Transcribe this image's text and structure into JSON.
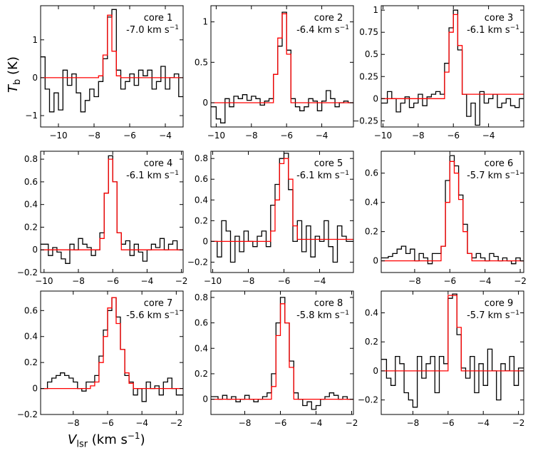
{
  "figure": {
    "ylabel_main": "T",
    "ylabel_sub": "b",
    "ylabel_unit": " (K)",
    "xlabel_main": "V",
    "xlabel_sub": "lsr",
    "xlabel_unit": " (km s",
    "xlabel_exp": "−1",
    "xlabel_close": ")"
  },
  "chart_data": [
    {
      "type": "line",
      "title": "core 1",
      "velocity": "-7.0 km s",
      "vel_exp": "−1",
      "xlim": [
        -11.0,
        -3.0
      ],
      "ylim": [
        -1.3,
        1.9
      ],
      "xticks": [
        -10,
        -8,
        -6,
        -4
      ],
      "yticks": [
        -1,
        0,
        1
      ],
      "series": [
        {
          "name": "observed",
          "step": true,
          "color": "#000000",
          "x": [
            -11.0,
            -10.75,
            -10.5,
            -10.25,
            -10.0,
            -9.75,
            -9.5,
            -9.25,
            -9.0,
            -8.75,
            -8.5,
            -8.25,
            -8.0,
            -7.75,
            -7.5,
            -7.25,
            -7.0,
            -6.75,
            -6.5,
            -6.25,
            -6.0,
            -5.75,
            -5.5,
            -5.25,
            -5.0,
            -4.75,
            -4.5,
            -4.25,
            -4.0,
            -3.75,
            -3.5,
            -3.25
          ],
          "y": [
            0.55,
            -0.3,
            -0.9,
            -0.4,
            -0.85,
            0.2,
            -0.2,
            0.1,
            -0.4,
            -0.9,
            -0.6,
            -0.3,
            -0.5,
            -0.1,
            0.5,
            1.6,
            1.8,
            0.2,
            -0.3,
            -0.1,
            0.1,
            -0.2,
            0.2,
            0.05,
            0.2,
            -0.3,
            -0.1,
            0.3,
            -0.3,
            0.0,
            0.1,
            -0.5
          ]
        },
        {
          "name": "fit",
          "step": true,
          "color": "#ff0000",
          "x": [
            -11.0,
            -7.75,
            -7.5,
            -7.25,
            -7.0,
            -6.75,
            -6.5
          ],
          "y": [
            0.0,
            0.05,
            0.6,
            1.65,
            0.7,
            0.05,
            0.0
          ]
        }
      ]
    },
    {
      "type": "line",
      "title": "core 2",
      "velocity": "-6.4 km s",
      "vel_exp": "−1",
      "xlim": [
        -10.3,
        -2.2
      ],
      "ylim": [
        -0.3,
        1.2
      ],
      "xticks": [
        -10,
        -8,
        -6,
        -4
      ],
      "yticks": [
        0.0,
        0.5,
        1.0
      ],
      "series": [
        {
          "name": "observed",
          "step": true,
          "color": "#000000",
          "x": [
            -10.3,
            -10.0,
            -9.75,
            -9.5,
            -9.25,
            -9.0,
            -8.75,
            -8.5,
            -8.25,
            -8.0,
            -7.75,
            -7.5,
            -7.25,
            -7.0,
            -6.75,
            -6.5,
            -6.25,
            -6.0,
            -5.75,
            -5.5,
            -5.25,
            -5.0,
            -4.75,
            -4.5,
            -4.25,
            -4.0,
            -3.75,
            -3.5,
            -3.25,
            -3.0,
            -2.75,
            -2.5
          ],
          "y": [
            -0.05,
            -0.2,
            -0.25,
            0.05,
            -0.05,
            0.08,
            0.05,
            0.1,
            0.03,
            0.08,
            0.05,
            -0.03,
            0.02,
            0.05,
            0.35,
            0.7,
            1.12,
            0.65,
            0.05,
            -0.05,
            -0.1,
            -0.05,
            0.05,
            0.02,
            -0.1,
            0.02,
            0.15,
            0.05,
            -0.05,
            0.0,
            0.02,
            0.0
          ]
        },
        {
          "name": "fit",
          "step": true,
          "color": "#ff0000",
          "x": [
            -10.3,
            -6.75,
            -6.5,
            -6.25,
            -6.0,
            -5.75
          ],
          "y": [
            0.0,
            0.35,
            0.8,
            1.1,
            0.6,
            0.0
          ]
        }
      ]
    },
    {
      "type": "line",
      "title": "core 3",
      "velocity": "-6.1 km s",
      "vel_exp": "−1",
      "xlim": [
        -10.1,
        -2.0
      ],
      "ylim": [
        -0.32,
        1.05
      ],
      "xticks": [
        -10,
        -8,
        -6,
        -4
      ],
      "yticks": [
        -0.25,
        0.0,
        0.25,
        0.5,
        0.75,
        1.0
      ],
      "series": [
        {
          "name": "observed",
          "step": true,
          "color": "#000000",
          "x": [
            -10.1,
            -9.75,
            -9.5,
            -9.25,
            -9.0,
            -8.75,
            -8.5,
            -8.25,
            -8.0,
            -7.75,
            -7.5,
            -7.25,
            -7.0,
            -6.75,
            -6.5,
            -6.25,
            -6.0,
            -5.75,
            -5.5,
            -5.25,
            -5.0,
            -4.75,
            -4.5,
            -4.25,
            -4.0,
            -3.75,
            -3.5,
            -3.25,
            -3.0,
            -2.75,
            -2.5,
            -2.25
          ],
          "y": [
            -0.05,
            0.08,
            0.0,
            -0.15,
            -0.05,
            0.02,
            -0.1,
            -0.05,
            0.05,
            -0.08,
            0.02,
            0.05,
            0.08,
            0.05,
            0.4,
            0.8,
            1.0,
            0.55,
            0.05,
            -0.2,
            -0.05,
            -0.3,
            0.08,
            -0.05,
            0.0,
            0.05,
            -0.1,
            -0.05,
            0.0,
            -0.08,
            -0.1,
            0.0
          ]
        },
        {
          "name": "fit",
          "step": true,
          "color": "#ff0000",
          "x": [
            -10.1,
            -6.5,
            -6.25,
            -6.0,
            -5.75,
            -5.5
          ],
          "y": [
            0.0,
            0.3,
            0.75,
            0.95,
            0.6,
            0.05
          ]
        }
      ]
    },
    {
      "type": "line",
      "title": "core 4",
      "velocity": "-6.1 km s",
      "vel_exp": "−1",
      "xlim": [
        -10.2,
        -1.9
      ],
      "ylim": [
        -0.2,
        0.87
      ],
      "xticks": [
        -10,
        -8,
        -6,
        -4,
        -2
      ],
      "yticks": [
        -0.2,
        0.0,
        0.2,
        0.4,
        0.6,
        0.8
      ],
      "series": [
        {
          "name": "observed",
          "step": true,
          "color": "#000000",
          "x": [
            -10.2,
            -9.75,
            -9.5,
            -9.25,
            -9.0,
            -8.75,
            -8.5,
            -8.25,
            -8.0,
            -7.75,
            -7.5,
            -7.25,
            -7.0,
            -6.75,
            -6.5,
            -6.25,
            -6.0,
            -5.75,
            -5.5,
            -5.25,
            -5.0,
            -4.75,
            -4.5,
            -4.25,
            -4.0,
            -3.75,
            -3.5,
            -3.25,
            -3.0,
            -2.75,
            -2.5,
            -2.25
          ],
          "y": [
            0.05,
            -0.05,
            0.02,
            -0.02,
            -0.08,
            -0.12,
            0.05,
            0.0,
            0.1,
            0.05,
            0.02,
            -0.05,
            0.0,
            0.15,
            0.5,
            0.83,
            0.6,
            0.15,
            0.05,
            0.08,
            -0.05,
            0.05,
            -0.02,
            -0.1,
            0.0,
            0.05,
            0.02,
            0.1,
            0.0,
            0.05,
            0.08,
            0.0
          ]
        },
        {
          "name": "fit",
          "step": true,
          "color": "#ff0000",
          "x": [
            -10.2,
            -6.75,
            -6.5,
            -6.25,
            -6.0,
            -5.75,
            -5.5
          ],
          "y": [
            0.0,
            0.1,
            0.5,
            0.8,
            0.6,
            0.15,
            0.0
          ]
        }
      ]
    },
    {
      "type": "line",
      "title": "core 5",
      "velocity": "-6.1 km s",
      "vel_exp": "−1",
      "xlim": [
        -10.1,
        -2.1
      ],
      "ylim": [
        -0.3,
        0.87
      ],
      "xticks": [
        -10,
        -8,
        -6,
        -4
      ],
      "yticks": [
        -0.2,
        0.0,
        0.2,
        0.4,
        0.6,
        0.8
      ],
      "series": [
        {
          "name": "observed",
          "step": true,
          "color": "#000000",
          "x": [
            -10.1,
            -9.75,
            -9.5,
            -9.25,
            -9.0,
            -8.75,
            -8.5,
            -8.25,
            -8.0,
            -7.75,
            -7.5,
            -7.25,
            -7.0,
            -6.75,
            -6.5,
            -6.25,
            -6.0,
            -5.75,
            -5.5,
            -5.25,
            -5.0,
            -4.75,
            -4.5,
            -4.25,
            -4.0,
            -3.75,
            -3.5,
            -3.25,
            -3.0,
            -2.75,
            -2.5,
            -2.25
          ],
          "y": [
            0.0,
            -0.15,
            0.2,
            0.1,
            -0.2,
            0.05,
            -0.1,
            0.1,
            0.0,
            -0.05,
            0.05,
            0.1,
            -0.05,
            0.35,
            0.55,
            0.8,
            0.85,
            0.5,
            0.0,
            0.2,
            -0.1,
            0.15,
            -0.15,
            0.05,
            0.0,
            0.2,
            -0.05,
            -0.2,
            0.15,
            0.05,
            0.0,
            0.0
          ]
        },
        {
          "name": "fit",
          "step": true,
          "color": "#ff0000",
          "x": [
            -10.1,
            -6.75,
            -6.5,
            -6.25,
            -6.0,
            -5.75,
            -5.5,
            -5.25
          ],
          "y": [
            0.0,
            0.1,
            0.4,
            0.75,
            0.8,
            0.6,
            0.15,
            0.02
          ]
        }
      ]
    },
    {
      "type": "line",
      "title": "core 6",
      "velocity": "-5.7 km s",
      "vel_exp": "−1",
      "xlim": [
        -9.9,
        -1.8
      ],
      "ylim": [
        -0.08,
        0.75
      ],
      "xticks": [
        -8,
        -6,
        -4,
        -2
      ],
      "yticks": [
        0.0,
        0.2,
        0.4,
        0.6
      ],
      "series": [
        {
          "name": "observed",
          "step": true,
          "color": "#000000",
          "x": [
            -9.9,
            -9.5,
            -9.25,
            -9.0,
            -8.75,
            -8.5,
            -8.25,
            -8.0,
            -7.75,
            -7.5,
            -7.25,
            -7.0,
            -6.75,
            -6.5,
            -6.25,
            -6.0,
            -5.75,
            -5.5,
            -5.25,
            -5.0,
            -4.75,
            -4.5,
            -4.25,
            -4.0,
            -3.75,
            -3.5,
            -3.25,
            -3.0,
            -2.75,
            -2.5,
            -2.25,
            -2.0
          ],
          "y": [
            0.02,
            0.03,
            0.05,
            0.08,
            0.1,
            0.05,
            0.08,
            0.0,
            0.05,
            0.02,
            -0.02,
            0.05,
            0.05,
            0.1,
            0.55,
            0.72,
            0.65,
            0.45,
            0.25,
            0.05,
            0.02,
            0.05,
            0.02,
            0.0,
            0.05,
            0.03,
            0.0,
            0.02,
            0.0,
            -0.02,
            0.02,
            0.0
          ]
        },
        {
          "name": "fit",
          "step": true,
          "color": "#ff0000",
          "x": [
            -9.9,
            -6.5,
            -6.25,
            -6.0,
            -5.75,
            -5.5,
            -5.25,
            -5.0,
            -4.75
          ],
          "y": [
            0.0,
            0.1,
            0.4,
            0.68,
            0.6,
            0.42,
            0.2,
            0.05,
            0.0
          ]
        }
      ]
    },
    {
      "type": "line",
      "title": "core 7",
      "velocity": "-5.6 km s",
      "vel_exp": "−1",
      "xlim": [
        -9.9,
        -1.6
      ],
      "ylim": [
        -0.2,
        0.75
      ],
      "xticks": [
        -8,
        -6,
        -4,
        -2
      ],
      "yticks": [
        -0.2,
        0.0,
        0.2,
        0.4,
        0.6
      ],
      "series": [
        {
          "name": "observed",
          "step": true,
          "color": "#000000",
          "x": [
            -9.9,
            -9.5,
            -9.25,
            -9.0,
            -8.75,
            -8.5,
            -8.25,
            -8.0,
            -7.75,
            -7.5,
            -7.25,
            -7.0,
            -6.75,
            -6.5,
            -6.25,
            -6.0,
            -5.75,
            -5.5,
            -5.25,
            -5.0,
            -4.75,
            -4.5,
            -4.25,
            -4.0,
            -3.75,
            -3.5,
            -3.25,
            -3.0,
            -2.75,
            -2.5,
            -2.25,
            -2.0
          ],
          "y": [
            0.0,
            0.05,
            0.08,
            0.1,
            0.12,
            0.1,
            0.08,
            0.05,
            0.0,
            -0.02,
            0.05,
            0.05,
            0.1,
            0.25,
            0.45,
            0.6,
            0.7,
            0.55,
            0.3,
            0.1,
            0.05,
            -0.05,
            0.0,
            -0.1,
            0.05,
            0.0,
            0.02,
            -0.05,
            0.05,
            0.08,
            0.0,
            -0.05
          ]
        },
        {
          "name": "fit",
          "step": true,
          "color": "#ff0000",
          "x": [
            -9.9,
            -7.0,
            -6.75,
            -6.5,
            -6.25,
            -6.0,
            -5.75,
            -5.5,
            -5.25,
            -5.0,
            -4.75,
            -4.5
          ],
          "y": [
            0.0,
            0.02,
            0.05,
            0.2,
            0.4,
            0.62,
            0.7,
            0.5,
            0.3,
            0.12,
            0.04,
            0.0
          ]
        }
      ]
    },
    {
      "type": "line",
      "title": "core 8",
      "velocity": "-5.8 km s",
      "vel_exp": "−1",
      "xlim": [
        -9.9,
        -1.9
      ],
      "ylim": [
        -0.12,
        0.85
      ],
      "xticks": [
        -8,
        -6,
        -4,
        -2
      ],
      "yticks": [
        0.0,
        0.2,
        0.4,
        0.6,
        0.8
      ],
      "series": [
        {
          "name": "observed",
          "step": true,
          "color": "#000000",
          "x": [
            -9.9,
            -9.5,
            -9.25,
            -9.0,
            -8.75,
            -8.5,
            -8.25,
            -8.0,
            -7.75,
            -7.5,
            -7.25,
            -7.0,
            -6.75,
            -6.5,
            -6.25,
            -6.0,
            -5.75,
            -5.5,
            -5.25,
            -5.0,
            -4.75,
            -4.5,
            -4.25,
            -4.0,
            -3.75,
            -3.5,
            -3.25,
            -3.0,
            -2.75,
            -2.5,
            -2.25,
            -2.0
          ],
          "y": [
            0.02,
            0.0,
            0.03,
            0.0,
            0.02,
            -0.02,
            0.0,
            0.03,
            0.0,
            -0.02,
            0.0,
            0.02,
            0.05,
            0.2,
            0.6,
            0.8,
            0.6,
            0.3,
            0.05,
            0.0,
            -0.05,
            -0.02,
            -0.08,
            -0.05,
            0.0,
            0.02,
            0.05,
            0.03,
            0.0,
            0.02,
            0.0,
            0.0
          ]
        },
        {
          "name": "fit",
          "step": true,
          "color": "#ff0000",
          "x": [
            -9.9,
            -6.5,
            -6.25,
            -6.0,
            -5.75,
            -5.5,
            -5.25
          ],
          "y": [
            0.0,
            0.1,
            0.5,
            0.75,
            0.6,
            0.25,
            0.0
          ]
        }
      ]
    },
    {
      "type": "line",
      "title": "core 9",
      "velocity": "-5.7 km s",
      "vel_exp": "−1",
      "xlim": [
        -9.8,
        -1.7
      ],
      "ylim": [
        -0.3,
        0.55
      ],
      "xticks": [
        -8,
        -6,
        -4,
        -2
      ],
      "yticks": [
        -0.2,
        0.0,
        0.2,
        0.4
      ],
      "series": [
        {
          "name": "observed",
          "step": true,
          "color": "#000000",
          "x": [
            -9.8,
            -9.5,
            -9.25,
            -9.0,
            -8.75,
            -8.5,
            -8.25,
            -8.0,
            -7.75,
            -7.5,
            -7.25,
            -7.0,
            -6.75,
            -6.5,
            -6.25,
            -6.0,
            -5.75,
            -5.5,
            -5.25,
            -5.0,
            -4.75,
            -4.5,
            -4.25,
            -4.0,
            -3.75,
            -3.5,
            -3.25,
            -3.0,
            -2.75,
            -2.5,
            -2.25,
            -2.0
          ],
          "y": [
            0.08,
            -0.05,
            -0.1,
            0.1,
            0.05,
            -0.15,
            -0.2,
            -0.25,
            0.1,
            -0.05,
            0.05,
            0.1,
            -0.15,
            0.1,
            0.05,
            0.5,
            0.53,
            0.25,
            0.02,
            -0.05,
            0.1,
            -0.15,
            0.05,
            -0.1,
            0.15,
            0.0,
            -0.2,
            0.05,
            0.0,
            0.1,
            -0.1,
            0.02
          ]
        },
        {
          "name": "fit",
          "step": true,
          "color": "#ff0000",
          "x": [
            -9.8,
            -6.0,
            -5.75,
            -5.5,
            -5.25
          ],
          "y": [
            0.0,
            0.52,
            0.52,
            0.3,
            0.0
          ]
        }
      ]
    }
  ]
}
